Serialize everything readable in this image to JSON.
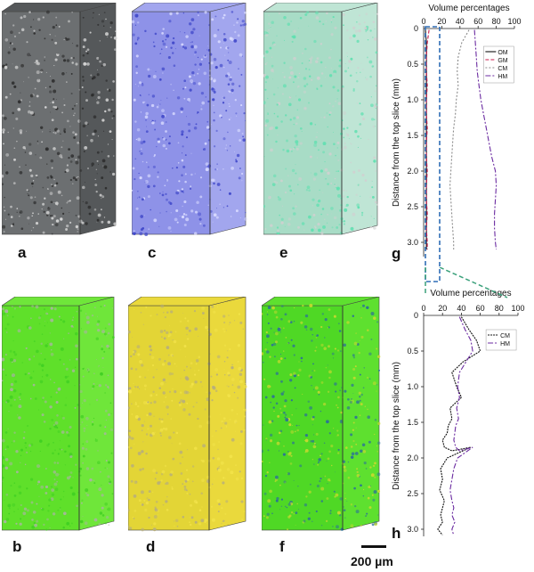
{
  "panels": [
    {
      "id": "a",
      "label": "a",
      "front": "#6c6f71",
      "side": "#55585a",
      "speck": "#d8d8d8",
      "speck2": "#2a2a2a"
    },
    {
      "id": "c",
      "label": "c",
      "front": "#8e92e8",
      "side": "#a2a6ee",
      "speck": "#3f47c9",
      "speck2": "#d9dbff"
    },
    {
      "id": "e",
      "label": "e",
      "front": "#a8dcc6",
      "side": "#bfe5d5",
      "speck": "#5fe0b0",
      "speck2": "#d0d0d0"
    },
    {
      "id": "b",
      "label": "b",
      "front": "#5fe02a",
      "side": "#6fe63a",
      "speck": "#a9b4a0",
      "speck2": "#3fcf22"
    },
    {
      "id": "d",
      "label": "d",
      "front": "#e3d536",
      "side": "#ead93c",
      "speck": "#b7ae7c",
      "speck2": "#f2e34a"
    },
    {
      "id": "f",
      "label": "f",
      "front": "#4fd825",
      "side": "#5ee02f",
      "speck": "#2b6f9a",
      "speck2": "#c7d830"
    }
  ],
  "scale_bar": {
    "label": "200 µm"
  },
  "chart_data": [
    {
      "id": "g",
      "type": "line",
      "panel_label": "g",
      "title": "Volume percentages",
      "ylabel": "Distance from the top slice (mm)",
      "xlim": [
        0,
        100
      ],
      "ylim": [
        0,
        3.2
      ],
      "y_inverted": true,
      "x_ticks": [
        0,
        20,
        40,
        60,
        80,
        100
      ],
      "y_ticks": [
        0.5,
        1.0,
        1.5,
        2.0,
        2.5,
        3.0
      ],
      "y_tick_labels": [
        "0.5",
        "1.0",
        "1.5",
        "2.0",
        "2.5",
        "3.0"
      ],
      "legend_position": "right",
      "series": [
        {
          "name": "OM",
          "color": "#111111",
          "dash": "",
          "x": [
            2,
            3,
            3,
            3,
            3,
            3,
            3,
            3,
            3,
            3,
            3,
            3,
            3,
            3,
            3,
            3,
            3
          ],
          "y": [
            0.02,
            0.2,
            0.4,
            0.6,
            0.8,
            1.0,
            1.2,
            1.4,
            1.6,
            1.8,
            2.0,
            2.2,
            2.4,
            2.6,
            2.8,
            3.0,
            3.1
          ]
        },
        {
          "name": "GM",
          "color": "#c81e4e",
          "dash": "4 2",
          "x": [
            6,
            4,
            3,
            3,
            4,
            3,
            3,
            4,
            3,
            3,
            4,
            3,
            3,
            4,
            3,
            4,
            4
          ],
          "y": [
            0.02,
            0.2,
            0.4,
            0.6,
            0.8,
            1.0,
            1.2,
            1.4,
            1.6,
            1.8,
            2.0,
            2.2,
            2.4,
            2.6,
            2.8,
            3.0,
            3.1
          ]
        },
        {
          "name": "CM",
          "color": "#8a8a8a",
          "dash": "2 2",
          "x": [
            50,
            42,
            38,
            37,
            38,
            36,
            35,
            33,
            32,
            31,
            30,
            29,
            30,
            31,
            32,
            33,
            33
          ],
          "y": [
            0.02,
            0.2,
            0.4,
            0.6,
            0.8,
            1.0,
            1.2,
            1.4,
            1.6,
            1.8,
            2.0,
            2.2,
            2.4,
            2.6,
            2.8,
            3.0,
            3.1
          ]
        },
        {
          "name": "HM",
          "color": "#6a2aa0",
          "dash": "6 2 2 2",
          "x": [
            56,
            57,
            58,
            59,
            61,
            63,
            66,
            69,
            72,
            75,
            79,
            80,
            79,
            78,
            78,
            79,
            80
          ],
          "y": [
            0.02,
            0.2,
            0.4,
            0.6,
            0.8,
            1.0,
            1.2,
            1.4,
            1.6,
            1.8,
            2.0,
            2.2,
            2.4,
            2.6,
            2.8,
            3.0,
            3.1
          ]
        }
      ]
    },
    {
      "id": "h",
      "type": "line",
      "panel_label": "h",
      "title": "Volume percentages",
      "ylabel": "Distance from the top slice (mm)",
      "xlim": [
        0,
        100
      ],
      "ylim": [
        0,
        3.1
      ],
      "y_inverted": true,
      "x_ticks": [
        0,
        20,
        40,
        60,
        80,
        100
      ],
      "y_ticks": [
        0.5,
        1.0,
        1.5,
        2.0,
        2.5,
        3.0
      ],
      "y_tick_labels": [
        "0.5",
        "1.0",
        "1.5",
        "2.0",
        "2.5",
        "3.0"
      ],
      "legend_position": "right",
      "series": [
        {
          "name": "CM",
          "color": "#111111",
          "dash": "2 1",
          "x": [
            40,
            48,
            56,
            60,
            42,
            30,
            35,
            40,
            28,
            30,
            26,
            25,
            20,
            22,
            30,
            50,
            25,
            18,
            20,
            17,
            22,
            20,
            18,
            20,
            15,
            18,
            20
          ],
          "y": [
            0.02,
            0.2,
            0.35,
            0.5,
            0.65,
            0.8,
            1.0,
            1.15,
            1.3,
            1.45,
            1.55,
            1.65,
            1.75,
            1.85,
            1.9,
            1.85,
            2.0,
            2.15,
            2.3,
            2.45,
            2.6,
            2.7,
            2.8,
            2.9,
            3.0,
            3.05,
            3.08
          ]
        },
        {
          "name": "HM",
          "color": "#6a2aa0",
          "dash": "6 2 2 2",
          "x": [
            38,
            44,
            50,
            52,
            45,
            38,
            36,
            38,
            35,
            37,
            34,
            33,
            32,
            34,
            38,
            52,
            36,
            32,
            30,
            28,
            30,
            32,
            30,
            33,
            30,
            31,
            32
          ],
          "y": [
            0.02,
            0.2,
            0.35,
            0.5,
            0.65,
            0.8,
            1.0,
            1.15,
            1.3,
            1.45,
            1.55,
            1.65,
            1.75,
            1.85,
            1.9,
            1.85,
            2.0,
            2.15,
            2.3,
            2.45,
            2.6,
            2.7,
            2.8,
            2.9,
            3.0,
            3.05,
            3.08
          ]
        }
      ]
    }
  ]
}
